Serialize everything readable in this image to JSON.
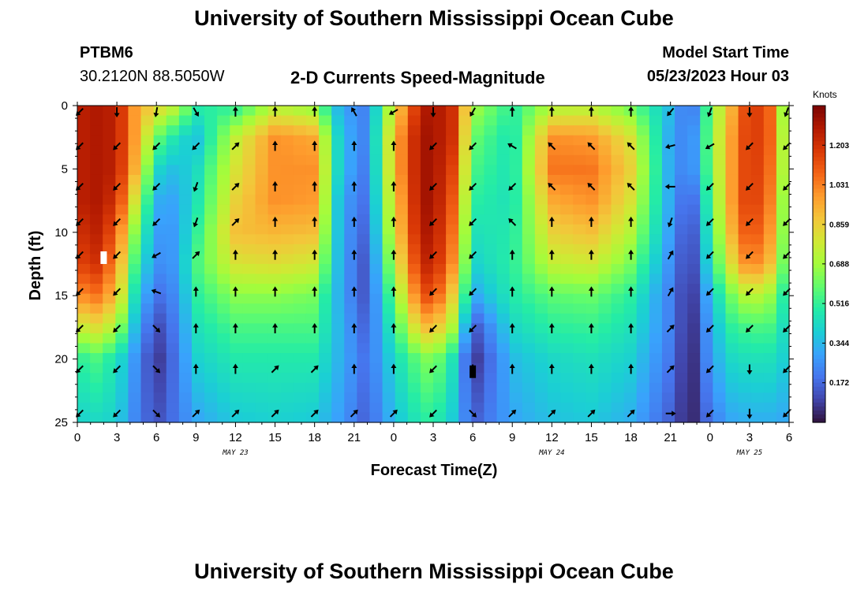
{
  "header": {
    "title": "University of Southern Mississippi Ocean Cube",
    "station": "PTBM6",
    "coords": "30.2120N  88.5050W",
    "subtitle": "2-D Currents Speed-Magnitude",
    "model_start_label": "Model Start Time",
    "model_start_value": "05/23/2023 Hour 03"
  },
  "footer": {
    "title": "University of Southern Mississippi Ocean Cube"
  },
  "colors": {
    "scale": [
      "#30123b",
      "#4145ab",
      "#4675ed",
      "#39a2fc",
      "#1bcfd4",
      "#24eca6",
      "#61fc6c",
      "#a4fc3b",
      "#d1e834",
      "#f3c63a",
      "#fe9b2d",
      "#f36315",
      "#d93806",
      "#b11901",
      "#7a0403"
    ]
  },
  "chart_data": {
    "type": "heatmap",
    "title": "2-D Currents Speed-Magnitude",
    "xlabel": "Forecast Time(Z)",
    "ylabel": "Depth (ft)",
    "colorbar_label": "Knots",
    "colorbar_ticks": [
      "1.203",
      "1.031",
      "0.859",
      "0.688",
      "0.516",
      "0.344",
      "0.172"
    ],
    "colorbar_values": [
      1.203,
      1.031,
      0.859,
      0.688,
      0.516,
      0.344,
      0.172
    ],
    "colorbar_range": [
      0.0,
      1.375
    ],
    "x_tick_labels": [
      "0",
      "3",
      "6",
      "9",
      "12",
      "15",
      "18",
      "21",
      "0",
      "3",
      "6",
      "9",
      "12",
      "15",
      "18",
      "21",
      "0",
      "3",
      "6"
    ],
    "x_tick_hours": [
      0,
      3,
      6,
      9,
      12,
      15,
      18,
      21,
      24,
      27,
      30,
      33,
      36,
      39,
      42,
      45,
      48,
      51,
      54
    ],
    "x_range_hours": [
      0,
      54
    ],
    "y_tick_labels": [
      "0",
      "5",
      "10",
      "15",
      "20",
      "25"
    ],
    "y_tick_values": [
      0,
      5,
      10,
      15,
      20,
      25
    ],
    "y_range": [
      0,
      25
    ],
    "date_labels": [
      {
        "text": "MAY 23",
        "hour": 12
      },
      {
        "text": "MAY 24",
        "hour": 36
      },
      {
        "text": "MAY 25",
        "hour": 51
      }
    ],
    "speed_control_rows": [
      {
        "hours": [
          0,
          1.5,
          3,
          4.5,
          6,
          7.5,
          9,
          12,
          15,
          18,
          20,
          22,
          24,
          26,
          27,
          28.5,
          30,
          33,
          36,
          39,
          42,
          45,
          46.5,
          48,
          49.5,
          51,
          52.5,
          54
        ],
        "values": [
          1.25,
          1.28,
          1.25,
          0.95,
          0.85,
          0.75,
          0.5,
          0.5,
          0.72,
          0.65,
          0.3,
          0.22,
          0.8,
          1.25,
          1.3,
          1.2,
          0.7,
          0.5,
          0.7,
          0.72,
          0.6,
          0.35,
          0.15,
          0.6,
          0.9,
          1.2,
          1.1,
          0.5
        ]
      },
      {
        "hours": [
          0,
          1.5,
          3,
          4.5,
          6,
          7.5,
          9,
          12,
          15,
          18,
          20,
          22,
          24,
          26,
          27,
          28.5,
          30,
          33,
          36,
          39,
          42,
          45,
          46.5,
          48,
          49.5,
          51,
          52.5,
          54
        ],
        "values": [
          1.25,
          1.28,
          1.25,
          0.95,
          0.6,
          0.45,
          0.35,
          0.75,
          1.0,
          0.95,
          0.35,
          0.22,
          0.9,
          1.3,
          1.3,
          1.2,
          0.6,
          0.45,
          1.0,
          0.98,
          0.8,
          0.3,
          0.2,
          0.62,
          0.95,
          1.2,
          1.1,
          0.55
        ]
      },
      {
        "hours": [
          0,
          1.5,
          3,
          4.5,
          6,
          7.5,
          9,
          12,
          15,
          18,
          20,
          22,
          24,
          26,
          27,
          28.5,
          30,
          33,
          36,
          39,
          42,
          45,
          46.5,
          48,
          49.5,
          51,
          52.5,
          54
        ],
        "values": [
          1.25,
          1.28,
          1.25,
          0.9,
          0.42,
          0.35,
          0.42,
          0.8,
          1.0,
          1.0,
          0.35,
          0.2,
          0.9,
          1.3,
          1.3,
          1.15,
          0.55,
          0.45,
          1.05,
          1.05,
          0.85,
          0.3,
          0.2,
          0.6,
          0.95,
          1.2,
          1.08,
          0.55
        ]
      },
      {
        "hours": [
          0,
          1.5,
          3,
          4.5,
          6,
          7.5,
          9,
          12,
          15,
          18,
          20,
          22,
          24,
          26,
          27,
          28.5,
          30,
          33,
          36,
          39,
          42,
          45,
          46.5,
          48,
          49.5,
          51,
          52.5,
          54
        ],
        "values": [
          1.25,
          1.28,
          1.2,
          0.75,
          0.32,
          0.3,
          0.45,
          0.85,
          1.0,
          0.98,
          0.3,
          0.18,
          0.85,
          1.3,
          1.3,
          1.1,
          0.5,
          0.45,
          0.95,
          1.0,
          0.8,
          0.3,
          0.12,
          0.55,
          0.95,
          1.2,
          1.05,
          0.5
        ]
      },
      {
        "hours": [
          0,
          1.5,
          3,
          4.5,
          6,
          7.5,
          9,
          12,
          15,
          18,
          20,
          22,
          24,
          26,
          27,
          28.5,
          30,
          33,
          36,
          39,
          42,
          45,
          46.5,
          48,
          49.5,
          51,
          52.5,
          54
        ],
        "values": [
          1.2,
          1.25,
          1.1,
          0.6,
          0.28,
          0.28,
          0.5,
          0.9,
          0.92,
          0.9,
          0.3,
          0.15,
          0.8,
          1.28,
          1.28,
          1.05,
          0.45,
          0.48,
          0.85,
          0.9,
          0.72,
          0.28,
          0.08,
          0.5,
          0.9,
          1.15,
          1.0,
          0.5
        ]
      },
      {
        "hours": [
          0,
          1.5,
          3,
          4.5,
          6,
          7.5,
          9,
          12,
          15,
          18,
          20,
          22,
          24,
          26,
          27,
          28.5,
          30,
          33,
          36,
          39,
          42,
          45,
          46.5,
          48,
          49.5,
          51,
          52.5,
          54
        ],
        "values": [
          1.15,
          1.2,
          1.0,
          0.5,
          0.25,
          0.28,
          0.55,
          0.8,
          0.82,
          0.78,
          0.3,
          0.12,
          0.72,
          1.22,
          1.25,
          1.0,
          0.4,
          0.5,
          0.75,
          0.78,
          0.62,
          0.25,
          0.06,
          0.45,
          0.8,
          1.05,
          0.92,
          0.48
        ]
      },
      {
        "hours": [
          0,
          1.5,
          3,
          4.5,
          6,
          7.5,
          9,
          12,
          15,
          18,
          20,
          22,
          24,
          26,
          27,
          28.5,
          30,
          33,
          36,
          39,
          42,
          45,
          46.5,
          48,
          49.5,
          51,
          52.5,
          54
        ],
        "values": [
          1.0,
          1.05,
          0.9,
          0.4,
          0.18,
          0.25,
          0.5,
          0.65,
          0.65,
          0.62,
          0.3,
          0.12,
          0.6,
          1.1,
          1.15,
          0.85,
          0.3,
          0.48,
          0.58,
          0.6,
          0.5,
          0.22,
          0.04,
          0.35,
          0.6,
          0.75,
          0.68,
          0.42
        ]
      },
      {
        "hours": [
          0,
          1.5,
          3,
          4.5,
          6,
          7.5,
          9,
          12,
          15,
          18,
          20,
          22,
          24,
          26,
          27,
          28.5,
          30,
          33,
          36,
          39,
          42,
          45,
          46.5,
          48,
          49.5,
          51,
          52.5,
          54
        ],
        "values": [
          0.75,
          0.82,
          0.7,
          0.32,
          0.1,
          0.22,
          0.45,
          0.55,
          0.55,
          0.55,
          0.32,
          0.15,
          0.5,
          0.88,
          0.92,
          0.7,
          0.12,
          0.42,
          0.5,
          0.52,
          0.45,
          0.22,
          0.03,
          0.3,
          0.5,
          0.55,
          0.55,
          0.4
        ]
      },
      {
        "hours": [
          0,
          1.5,
          3,
          4.5,
          6,
          7.5,
          9,
          12,
          15,
          18,
          20,
          22,
          24,
          26,
          27,
          28.5,
          30,
          33,
          36,
          39,
          42,
          45,
          46.5,
          48,
          49.5,
          51,
          52.5,
          54
        ],
        "values": [
          0.5,
          0.55,
          0.45,
          0.25,
          0.06,
          0.2,
          0.4,
          0.48,
          0.48,
          0.48,
          0.32,
          0.18,
          0.42,
          0.6,
          0.65,
          0.45,
          0.05,
          0.35,
          0.42,
          0.45,
          0.4,
          0.2,
          0.02,
          0.28,
          0.42,
          0.45,
          0.45,
          0.38
        ]
      },
      {
        "hours": [
          0,
          1.5,
          3,
          4.5,
          6,
          7.5,
          9,
          12,
          15,
          18,
          20,
          22,
          24,
          26,
          27,
          28.5,
          30,
          33,
          36,
          39,
          42,
          45,
          46.5,
          48,
          49.5,
          51,
          52.5,
          54
        ],
        "values": [
          0.4,
          0.42,
          0.4,
          0.22,
          0.12,
          0.2,
          0.3,
          0.38,
          0.4,
          0.38,
          0.28,
          0.15,
          0.35,
          0.48,
          0.5,
          0.38,
          0.15,
          0.3,
          0.36,
          0.38,
          0.32,
          0.15,
          0.02,
          0.2,
          0.3,
          0.32,
          0.32,
          0.3
        ]
      }
    ],
    "speed_control_depths": [
      0,
      2.5,
      5,
      7.5,
      10,
      12.5,
      15,
      17.5,
      20,
      25
    ],
    "vector_hours": [
      0,
      3,
      6,
      9,
      12,
      15,
      18,
      21,
      24,
      27,
      30,
      33,
      36,
      39,
      42,
      45,
      48,
      51,
      54
    ],
    "vector_depths": [
      0.5,
      3.2,
      6.4,
      9.2,
      11.8,
      14.7,
      17.6,
      20.8,
      24.3
    ],
    "vector_directions_deg": [
      [
        225,
        180,
        190,
        150,
        0,
        0,
        0,
        330,
        240,
        180,
        210,
        0,
        0,
        0,
        0,
        220,
        200,
        180,
        200
      ],
      [
        225,
        225,
        225,
        225,
        45,
        0,
        0,
        0,
        0,
        225,
        225,
        300,
        315,
        315,
        315,
        255,
        240,
        225,
        225
      ],
      [
        225,
        225,
        225,
        200,
        45,
        0,
        0,
        0,
        0,
        225,
        225,
        225,
        315,
        315,
        315,
        270,
        225,
        225,
        225
      ],
      [
        225,
        225,
        225,
        200,
        45,
        0,
        0,
        0,
        0,
        225,
        225,
        315,
        0,
        0,
        0,
        200,
        225,
        225,
        225
      ],
      [
        225,
        225,
        240,
        45,
        0,
        0,
        0,
        0,
        0,
        225,
        225,
        0,
        0,
        0,
        0,
        30,
        225,
        225,
        225
      ],
      [
        225,
        225,
        290,
        0,
        0,
        0,
        0,
        0,
        0,
        225,
        225,
        0,
        0,
        0,
        0,
        30,
        225,
        225,
        225
      ],
      [
        225,
        225,
        135,
        0,
        0,
        0,
        0,
        0,
        0,
        225,
        225,
        0,
        0,
        0,
        0,
        45,
        225,
        225,
        225
      ],
      [
        225,
        225,
        135,
        0,
        0,
        45,
        45,
        0,
        0,
        225,
        180,
        0,
        0,
        0,
        0,
        45,
        225,
        180,
        225
      ],
      [
        225,
        225,
        135,
        45,
        45,
        45,
        45,
        45,
        45,
        225,
        135,
        45,
        45,
        45,
        45,
        90,
        225,
        180,
        225
      ]
    ],
    "markers": [
      {
        "hour": 2.0,
        "depth": 12.0,
        "color": "#ffffff"
      },
      {
        "hour": 30.0,
        "depth": 21.0,
        "color": "#000000"
      }
    ]
  }
}
